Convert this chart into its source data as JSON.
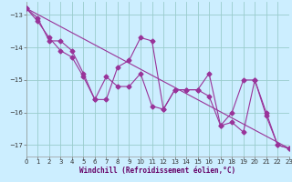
{
  "xlabel": "Windchill (Refroidissement éolien,°C)",
  "background_color": "#cceeff",
  "grid_color": "#99cccc",
  "line_color": "#993399",
  "x_data": [
    0,
    1,
    2,
    3,
    4,
    5,
    6,
    7,
    8,
    9,
    10,
    11,
    12,
    13,
    14,
    15,
    16,
    17,
    18,
    19,
    20,
    21,
    22,
    23
  ],
  "y1_data": [
    -12.8,
    -13.1,
    -13.8,
    -13.8,
    -14.1,
    -14.8,
    -15.6,
    -15.6,
    -14.6,
    -14.4,
    -13.7,
    -13.8,
    -15.9,
    -15.3,
    -15.3,
    -15.3,
    -14.8,
    -16.4,
    -16.0,
    -15.0,
    -15.0,
    -16.0,
    -17.0,
    -17.1
  ],
  "y2_data": [
    -12.8,
    -13.2,
    -13.7,
    -14.1,
    -14.3,
    -14.9,
    -15.6,
    -14.9,
    -15.2,
    -15.2,
    -14.8,
    -15.8,
    -15.9,
    -15.3,
    -15.3,
    -15.3,
    -15.5,
    -16.4,
    -16.3,
    -16.6,
    -15.0,
    -16.1,
    -17.0,
    -17.1
  ],
  "trend_x": [
    0,
    23
  ],
  "trend_y": [
    -12.8,
    -17.1
  ],
  "xlim": [
    0,
    23
  ],
  "ylim": [
    -17.35,
    -12.6
  ],
  "yticks": [
    -17,
    -16,
    -15,
    -14,
    -13
  ],
  "xticks": [
    0,
    1,
    2,
    3,
    4,
    5,
    6,
    7,
    8,
    9,
    10,
    11,
    12,
    13,
    14,
    15,
    16,
    17,
    18,
    19,
    20,
    21,
    22,
    23
  ],
  "marker": "D",
  "markersize": 2.5,
  "linewidth": 0.8,
  "axis_fontsize": 5.5,
  "tick_fontsize": 5.0
}
